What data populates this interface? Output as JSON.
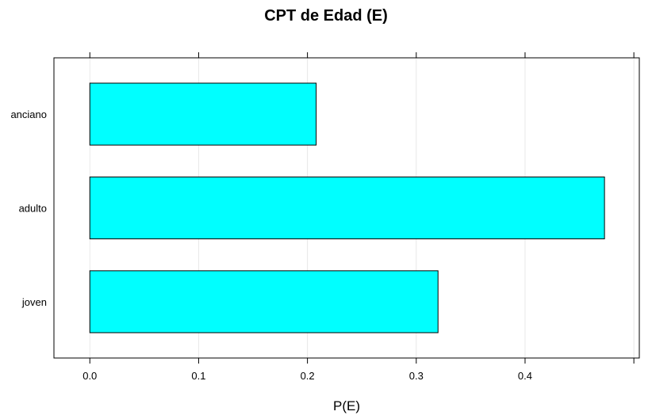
{
  "chart_data": {
    "type": "bar",
    "orientation": "horizontal",
    "title": "CPT de Edad (E)",
    "xlabel": "P(E)",
    "ylabel": "",
    "categories": [
      "joven",
      "adulto",
      "anciano"
    ],
    "values": [
      0.32,
      0.473,
      0.208
    ],
    "xlim": [
      -0.033,
      0.505
    ],
    "xticks": [
      0.0,
      0.1,
      0.2,
      0.3,
      0.4
    ],
    "xtick_labels": [
      "0.0",
      "0.1",
      "0.2",
      "0.3",
      "0.4"
    ],
    "grid": true,
    "legend": "none",
    "bar_color": "#00ffff",
    "bar_border_color": "#000000",
    "grid_color": "#e8e8e8"
  }
}
